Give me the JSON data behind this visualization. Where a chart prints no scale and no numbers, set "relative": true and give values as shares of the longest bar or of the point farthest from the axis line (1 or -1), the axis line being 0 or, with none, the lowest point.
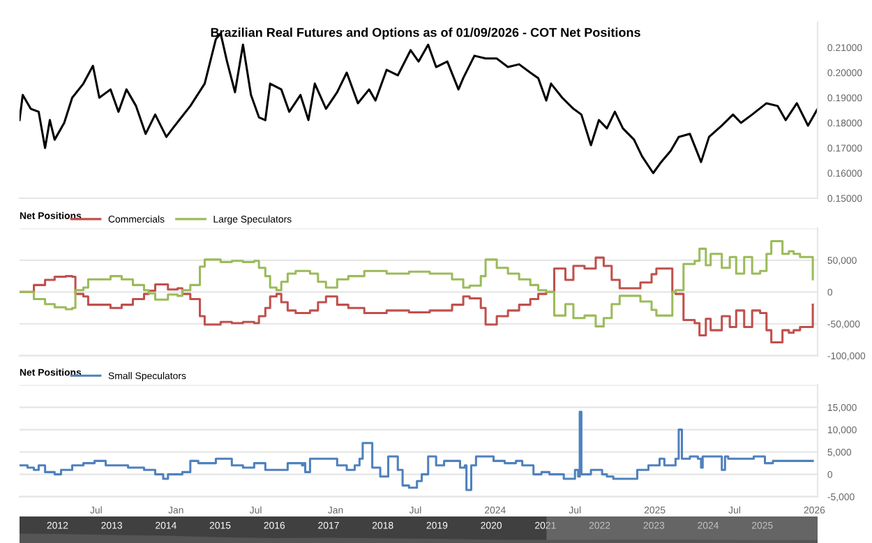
{
  "chart_data": [
    {
      "type": "line",
      "title": "Brazilian Real Futures and Options as of 01/09/2026 - COT Net Positions",
      "series": [
        {
          "color": "#000000",
          "x": [
            2021.02,
            2021.04,
            2021.09,
            2021.14,
            2021.18,
            2021.21,
            2021.24,
            2021.3,
            2021.35,
            2021.42,
            2021.48,
            2021.52,
            2021.59,
            2021.64,
            2021.69,
            2021.75,
            2021.81,
            2021.87,
            2021.94,
            2021.98,
            2022.09,
            2022.18,
            2022.25,
            2022.28,
            2022.32,
            2022.37,
            2022.42,
            2022.47,
            2022.52,
            2022.56,
            2022.59,
            2022.66,
            2022.71,
            2022.78,
            2022.83,
            2022.87,
            2022.94,
            2023.01,
            2023.07,
            2023.14,
            2023.21,
            2023.25,
            2023.32,
            2023.39,
            2023.47,
            2023.52,
            2023.58,
            2023.63,
            2023.7,
            2023.77,
            2023.8,
            2023.87,
            2023.94,
            2024.01,
            2024.08,
            2024.15,
            2024.22,
            2024.27,
            2024.32,
            2024.35,
            2024.42,
            2024.49,
            2024.54,
            2024.6,
            2024.65,
            2024.7,
            2024.75,
            2024.8,
            2024.87,
            2024.92,
            2024.99,
            2025.04,
            2025.1,
            2025.15,
            2025.22,
            2025.29,
            2025.34,
            2025.42,
            2025.49,
            2025.54,
            2025.61,
            2025.7,
            2025.77,
            2025.82,
            2025.89,
            2025.96,
            2025.99,
            2026.02
          ],
          "values": [
            0.1811,
            0.1911,
            0.1856,
            0.1844,
            0.17,
            0.1811,
            0.1733,
            0.18,
            0.19,
            0.1956,
            0.2027,
            0.19,
            0.1933,
            0.1844,
            0.1933,
            0.1867,
            0.1756,
            0.1833,
            0.1744,
            0.1778,
            0.1867,
            0.1956,
            0.2133,
            0.2156,
            0.2044,
            0.1922,
            0.2111,
            0.1911,
            0.1822,
            0.1811,
            0.1956,
            0.1933,
            0.1844,
            0.1911,
            0.1811,
            0.1956,
            0.1856,
            0.1922,
            0.2,
            0.1878,
            0.1933,
            0.1889,
            0.2011,
            0.1989,
            0.2089,
            0.2044,
            0.2111,
            0.2022,
            0.2044,
            0.1933,
            0.1978,
            0.2067,
            0.2056,
            0.2056,
            0.2022,
            0.2033,
            0.2,
            0.1978,
            0.1889,
            0.1956,
            0.19,
            0.1856,
            0.1833,
            0.1711,
            0.1811,
            0.1778,
            0.1844,
            0.1778,
            0.1733,
            0.1667,
            0.16,
            0.1644,
            0.1689,
            0.1744,
            0.1756,
            0.1644,
            0.1744,
            0.1789,
            0.1833,
            0.18,
            0.1833,
            0.1878,
            0.1867,
            0.1811,
            0.1878,
            0.1789,
            0.1822,
            0.1856
          ]
        }
      ],
      "xlim": [
        2021.02,
        2026.02
      ],
      "ylim": [
        0.15,
        0.22
      ],
      "yticks": [
        {
          "value": 0.15,
          "label": "0.15000"
        },
        {
          "value": 0.16,
          "label": "0.16000"
        },
        {
          "value": 0.17,
          "label": "0.17000"
        },
        {
          "value": 0.18,
          "label": "0.18000"
        },
        {
          "value": 0.19,
          "label": "0.19000"
        },
        {
          "value": 0.2,
          "label": "0.20000"
        },
        {
          "value": 0.21,
          "label": "0.21000"
        }
      ],
      "tick_labels": "y"
    },
    {
      "type": "step",
      "legend_title": "Net Positions",
      "legend": "top left",
      "grid": "y",
      "x": [
        2021.02,
        2021.11,
        2021.18,
        2021.24,
        2021.31,
        2021.35,
        2021.37,
        2021.42,
        2021.45,
        2021.59,
        2021.66,
        2021.73,
        2021.8,
        2021.83,
        2021.87,
        2021.94,
        2021.95,
        2022.01,
        2022.04,
        2022.09,
        2022.15,
        2022.18,
        2022.28,
        2022.35,
        2022.42,
        2022.49,
        2022.52,
        2022.56,
        2022.59,
        2022.63,
        2022.66,
        2022.7,
        2022.75,
        2022.84,
        2022.89,
        2022.94,
        2022.98,
        2023.01,
        2023.08,
        2023.18,
        2023.32,
        2023.46,
        2023.59,
        2023.73,
        2023.8,
        2023.84,
        2023.91,
        2023.94,
        2024.01,
        2024.08,
        2024.15,
        2024.22,
        2024.27,
        2024.32,
        2024.35,
        2024.37,
        2024.44,
        2024.49,
        2024.56,
        2024.63,
        2024.68,
        2024.73,
        2024.78,
        2024.84,
        2024.91,
        2024.98,
        2025.01,
        2025.03,
        2025.11,
        2025.13,
        2025.18,
        2025.25,
        2025.28,
        2025.32,
        2025.35,
        2025.42,
        2025.47,
        2025.51,
        2025.56,
        2025.61,
        2025.66,
        2025.7,
        2025.73,
        2025.8,
        2025.84,
        2025.87,
        2025.91,
        2025.99
      ],
      "series": [
        {
          "name": "Commercials",
          "color": "#c0504d",
          "values": [
            0,
            11000,
            19000,
            24000,
            25000,
            24000,
            -3000,
            -7000,
            -20000,
            -25000,
            -20000,
            -11000,
            -3000,
            2000,
            12000,
            12000,
            4000,
            6000,
            -3000,
            -11000,
            -38000,
            -51000,
            -47000,
            -49000,
            -47000,
            -49000,
            -38000,
            -25000,
            -7000,
            -3000,
            -16000,
            -29000,
            -33000,
            -29000,
            -16000,
            -7000,
            -7000,
            -20000,
            -25000,
            -33000,
            -29000,
            -32000,
            -29000,
            -20000,
            -7000,
            -10000,
            -25000,
            -51000,
            -38000,
            -29000,
            -20000,
            -11000,
            -3000,
            0,
            0,
            37000,
            19000,
            41000,
            37000,
            54000,
            41000,
            19000,
            6000,
            6000,
            15000,
            28000,
            37000,
            37000,
            0,
            -3000,
            -44000,
            -49000,
            -68000,
            -42000,
            -60000,
            -38000,
            -55000,
            -29000,
            -55000,
            -29000,
            -33000,
            -60000,
            -79000,
            -60000,
            -64000,
            -60000,
            -55000,
            -20000
          ]
        },
        {
          "name": "Large Speculators",
          "color": "#9bbb59",
          "values": [
            0,
            -11000,
            -19000,
            -24000,
            -27000,
            -25000,
            3000,
            7000,
            20000,
            25000,
            20000,
            11000,
            3000,
            -2000,
            -12000,
            -12000,
            -4000,
            -6000,
            3000,
            11000,
            40000,
            51000,
            47000,
            49000,
            47000,
            49000,
            38000,
            25000,
            7000,
            3000,
            16000,
            29000,
            33000,
            29000,
            16000,
            7000,
            7000,
            20000,
            25000,
            33000,
            29000,
            32000,
            29000,
            20000,
            7000,
            10000,
            25000,
            51000,
            38000,
            29000,
            20000,
            11000,
            3000,
            0,
            0,
            -37000,
            -19000,
            -41000,
            -37000,
            -54000,
            -41000,
            -19000,
            -6000,
            -6000,
            -15000,
            -28000,
            -37000,
            -37000,
            0,
            3000,
            44000,
            49000,
            68000,
            42000,
            60000,
            38000,
            55000,
            29000,
            55000,
            29000,
            33000,
            60000,
            80000,
            60000,
            64000,
            60000,
            55000,
            20000
          ]
        }
      ],
      "xlim": [
        2021.02,
        2026.02
      ],
      "ylim": [
        -100000,
        100000
      ],
      "yticks": [
        {
          "value": -100000,
          "label": "-100,000"
        },
        {
          "value": -50000,
          "label": "-50,000"
        },
        {
          "value": 0,
          "label": "0"
        },
        {
          "value": 50000,
          "label": "50,000"
        },
        {
          "value": 100000,
          "label": null
        }
      ],
      "tick_labels": "y"
    },
    {
      "type": "step",
      "legend_title": "Net Positions",
      "legend": "top left",
      "grid": "y",
      "series": [
        {
          "name": "Small Speculators",
          "color": "#4f81bd",
          "x": [
            2021.02,
            2021.07,
            2021.11,
            2021.14,
            2021.18,
            2021.24,
            2021.28,
            2021.35,
            2021.42,
            2021.49,
            2021.56,
            2021.63,
            2021.7,
            2021.8,
            2021.87,
            2021.92,
            2021.95,
            2022.04,
            2022.09,
            2022.14,
            2022.25,
            2022.35,
            2022.42,
            2022.49,
            2022.56,
            2022.7,
            2022.79,
            2022.8,
            2022.81,
            2022.84,
            2022.87,
            2023.01,
            2023.07,
            2023.12,
            2023.15,
            2023.17,
            2023.18,
            2023.23,
            2023.28,
            2023.33,
            2023.35,
            2023.39,
            2023.42,
            2023.46,
            2023.51,
            2023.54,
            2023.58,
            2023.63,
            2023.68,
            2023.78,
            2023.81,
            2023.82,
            2023.84,
            2023.85,
            2023.88,
            2023.99,
            2024.06,
            2024.13,
            2024.17,
            2024.24,
            2024.29,
            2024.34,
            2024.43,
            2024.46,
            2024.5,
            2024.52,
            2024.53,
            2024.54,
            2024.6,
            2024.67,
            2024.7,
            2024.74,
            2024.82,
            2024.89,
            2024.96,
            2025.03,
            2025.06,
            2025.13,
            2025.15,
            2025.17,
            2025.22,
            2025.27,
            2025.29,
            2025.3,
            2025.36,
            2025.41,
            2025.42,
            2025.44,
            2025.46,
            2025.51,
            2025.62,
            2025.69,
            2025.74,
            2025.79,
            2025.99
          ],
          "values": [
            2000,
            1500,
            1000,
            2000,
            500,
            0,
            1000,
            2000,
            2500,
            3000,
            2000,
            2000,
            1500,
            1000,
            0,
            -1000,
            0,
            500,
            3000,
            2500,
            3500,
            2000,
            1500,
            2500,
            1000,
            2500,
            2000,
            2500,
            500,
            3500,
            3500,
            2000,
            1000,
            2000,
            3500,
            7000,
            7000,
            1500,
            -500,
            4000,
            4000,
            1000,
            -2500,
            -3000,
            -1500,
            0,
            4000,
            2000,
            3000,
            1500,
            2000,
            -3500,
            -3500,
            2000,
            4000,
            3000,
            2500,
            3000,
            2000,
            0,
            500,
            0,
            -1000,
            -1000,
            1000,
            -500,
            14000,
            0,
            1000,
            0,
            -500,
            -1000,
            -1000,
            1000,
            2000,
            3500,
            2000,
            3500,
            10000,
            3500,
            4000,
            3500,
            1500,
            4000,
            4000,
            4000,
            1000,
            4000,
            3500,
            3500,
            4000,
            2500,
            3000,
            3000,
            3000
          ]
        }
      ],
      "xlim": [
        2021.02,
        2026.02
      ],
      "ylim": [
        -5000,
        20000
      ],
      "yticks": [
        {
          "value": -5000,
          "label": "-5,000"
        },
        {
          "value": 0,
          "label": "0"
        },
        {
          "value": 5000,
          "label": "5,000"
        },
        {
          "value": 10000,
          "label": "10,000"
        },
        {
          "value": 15000,
          "label": "15,000"
        },
        {
          "value": 20000,
          "label": null
        }
      ],
      "xticks": [
        {
          "value": 2021.5,
          "label": "Jul"
        },
        {
          "value": 2022,
          "label": "Jan"
        },
        {
          "value": 2022.5,
          "label": "Jul"
        },
        {
          "value": 2023,
          "label": "Jan"
        },
        {
          "value": 2023.5,
          "label": "Jul"
        },
        {
          "value": 2024,
          "label": "2024"
        },
        {
          "value": 2024.5,
          "label": "Jul"
        },
        {
          "value": 2025,
          "label": "2025"
        },
        {
          "value": 2025.5,
          "label": "Jul"
        },
        {
          "value": 2026,
          "label": "2026"
        }
      ]
    },
    {
      "type": "area",
      "relative": true,
      "tick_labels": "x",
      "series": [
        {
          "color": "#555555",
          "x": [
            2011.3,
            2012,
            2013,
            2014,
            2015,
            2016,
            2017,
            2018,
            2019,
            2020,
            2021,
            2022,
            2023,
            2024,
            2025,
            2026.02
          ],
          "values": [
            1.0,
            0.95,
            0.85,
            0.78,
            0.6,
            0.52,
            0.55,
            0.5,
            0.45,
            0.35,
            0.33,
            0.35,
            0.36,
            0.35,
            0.31,
            0.33
          ]
        }
      ],
      "xlim": [
        2011.3,
        2026.02
      ],
      "xticks": [
        2012,
        2013,
        2014,
        2015,
        2016,
        2017,
        2018,
        2019,
        2020,
        2021,
        2022,
        2023,
        2024,
        2025
      ],
      "bands": [
        {
          "axis": "x",
          "from": 2021.02,
          "to": 2026.02,
          "color": "#8a8a8a"
        }
      ]
    }
  ]
}
